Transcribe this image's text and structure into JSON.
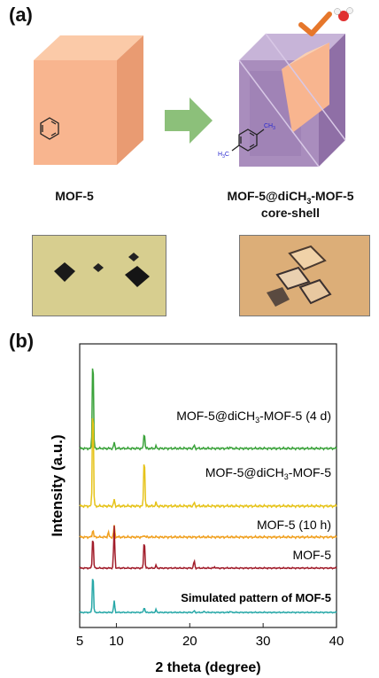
{
  "panel_a": {
    "label": "(a)",
    "left_caption": "MOF-5",
    "right_caption_main": "MOF-5@diCH",
    "right_caption_sub": "3",
    "right_caption_tail": "-MOF-5",
    "right_caption_line2": "core-shell",
    "methyl_label": "CH",
    "methyl_sub": "3",
    "methyl_left_label": "H",
    "methyl_left_sub": "3",
    "methyl_left_tail": "C",
    "colors": {
      "cube_front": "#f8b58f",
      "cube_top": "#fbcaa8",
      "cube_side": "#e99b72",
      "shell": "#a98dbd",
      "arrow": "#8cc07a",
      "check": "#e6772b"
    }
  },
  "panel_b": {
    "label": "(b)",
    "chart_data": {
      "type": "line",
      "xlabel": "2 theta (degree)",
      "ylabel": "Intensity (a.u.)",
      "xlim": [
        5,
        40
      ],
      "xticks": [
        "5",
        "10",
        "20",
        "30",
        "40"
      ],
      "series": [
        {
          "name": "MOF-5@diCH3-MOF-5 (4 d)",
          "color": "#3aa23a",
          "peaks": [
            [
              6.8,
              1.0
            ],
            [
              9.7,
              0.06
            ],
            [
              13.8,
              0.17
            ],
            [
              15.4,
              0.02
            ],
            [
              20.6,
              0.03
            ],
            [
              25.5,
              0.015
            ]
          ]
        },
        {
          "name": "MOF-5@diCH3-MOF-5",
          "color": "#e6c31a",
          "peaks": [
            [
              6.8,
              1.0
            ],
            [
              9.7,
              0.06
            ],
            [
              13.8,
              0.48
            ],
            [
              15.4,
              0.03
            ],
            [
              20.6,
              0.03
            ]
          ]
        },
        {
          "name": "MOF-5 (10 h)",
          "color": "#f0a020",
          "peaks": [
            [
              6.8,
              0.08
            ],
            [
              8.9,
              0.05
            ],
            [
              9.7,
              0.12
            ],
            [
              13.8,
              0.02
            ]
          ]
        },
        {
          "name": "MOF-5",
          "color": "#a11c2a",
          "peaks": [
            [
              6.8,
              0.55
            ],
            [
              9.7,
              0.68
            ],
            [
              13.8,
              0.48
            ],
            [
              15.4,
              0.04
            ],
            [
              20.6,
              0.12
            ],
            [
              23.4,
              0.02
            ]
          ]
        },
        {
          "name": "Simulated pattern of MOF-5",
          "color": "#28a8a8",
          "peaks": [
            [
              6.8,
              0.78
            ],
            [
              9.7,
              0.22
            ],
            [
              13.8,
              0.1
            ],
            [
              15.4,
              0.05
            ],
            [
              20.6,
              0.03
            ],
            [
              22.0,
              0.02
            ],
            [
              25.5,
              0.02
            ]
          ]
        }
      ]
    },
    "series_labels": [
      {
        "main": "MOF-5@diCH",
        "sub": "3",
        "tail": "-MOF-5 (4 d)"
      },
      {
        "main": "MOF-5@diCH",
        "sub": "3",
        "tail": "-MOF-5"
      },
      {
        "main": "MOF-5 (10 h)",
        "sub": "",
        "tail": ""
      },
      {
        "main": "MOF-5",
        "sub": "",
        "tail": ""
      },
      {
        "main": "Simulated pattern of MOF-5",
        "sub": "",
        "tail": ""
      }
    ]
  }
}
